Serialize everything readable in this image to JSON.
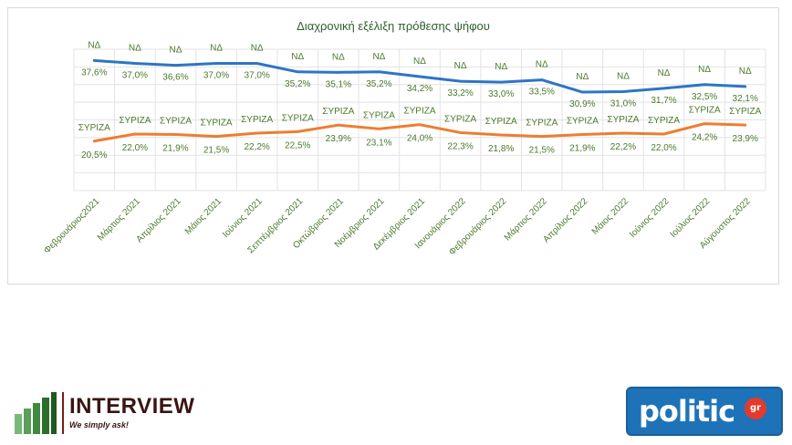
{
  "chart_data": {
    "type": "line",
    "title": "Διαχρονική εξέλιξη πρόθεσης ψήφου",
    "categories": [
      "Φεβρουάριος2021",
      "Μάρτιος 2021",
      "Απρίλιος 2021",
      "Μάιος 2021",
      "Ιούνιος 2021",
      "Σεπτέμβριος 2021",
      "Οκτώβριος 2021",
      "Νοέμβριος 2021",
      "Δεκέμβριος 2021",
      "Ιανουάριος 2022",
      "Φεβρουάριος 2022",
      "Μάρτιος 2022",
      "Απρίλιος 2022",
      "Μάιος 2022",
      "Ιούνιος 2022",
      "Ιούλιος 2022",
      "Αύγουστος 2022"
    ],
    "series": [
      {
        "name": "ΝΔ",
        "color": "#2e75c4",
        "values": [
          37.6,
          37.0,
          36.6,
          37.0,
          37.0,
          35.2,
          35.1,
          35.2,
          34.2,
          33.2,
          33.0,
          33.5,
          30.9,
          31.0,
          31.7,
          32.5,
          32.1
        ],
        "value_labels": [
          "37,6%",
          "37,0%",
          "36,6%",
          "37,0%",
          "37,0%",
          "35,2%",
          "35,1%",
          "35,2%",
          "34,2%",
          "33,2%",
          "33,0%",
          "33,5%",
          "30,9%",
          "31,0%",
          "31,7%",
          "32,5%",
          "32,1%"
        ]
      },
      {
        "name": "ΣΥΡΙΖΑ",
        "color": "#ed7d31",
        "values": [
          20.5,
          22.0,
          21.9,
          21.5,
          22.2,
          22.5,
          23.9,
          23.1,
          24.0,
          22.3,
          21.8,
          21.5,
          21.9,
          22.2,
          22.0,
          24.2,
          23.9
        ],
        "value_labels": [
          "20,5%",
          "22,0%",
          "21,9%",
          "21,5%",
          "22,2%",
          "22,5%",
          "23,9%",
          "23,1%",
          "24,0%",
          "22,3%",
          "21,8%",
          "21,5%",
          "21,9%",
          "22,2%",
          "22,0%",
          "24,2%",
          "23,9%"
        ]
      }
    ],
    "grid": true,
    "legend": "none"
  },
  "logos": {
    "interview_name": "INTERVIEW",
    "interview_tagline": "We simply ask!",
    "politic_name": "politic",
    "politic_badge": "gr"
  }
}
